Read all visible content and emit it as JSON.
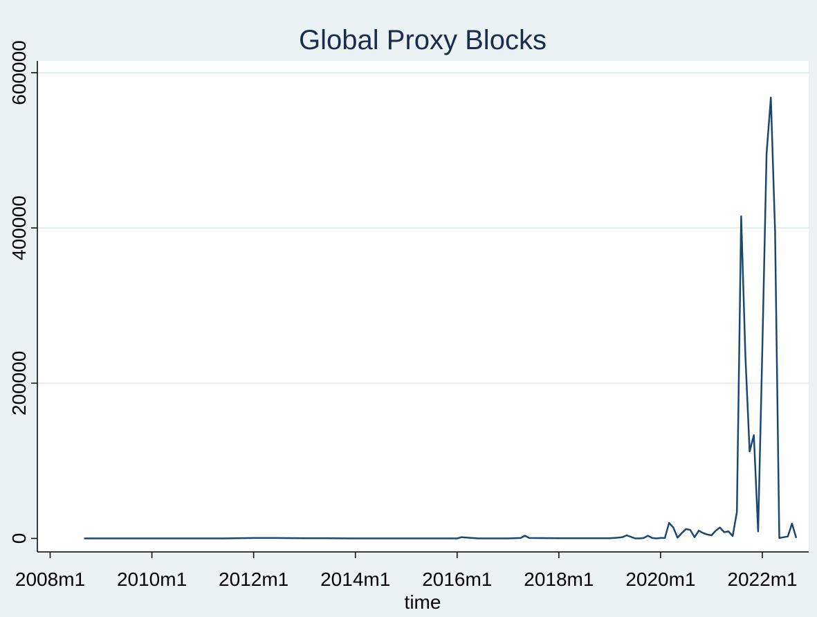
{
  "chart_data": {
    "type": "line",
    "title": "Global Proxy Blocks",
    "xlabel": "time",
    "ylabel": "",
    "xlim": [
      "2008-01",
      "2022-09"
    ],
    "ylim": [
      0,
      600000
    ],
    "x_ticks": [
      "2008-01",
      "2010-01",
      "2012-01",
      "2014-01",
      "2016-01",
      "2018-01",
      "2020-01",
      "2022-01"
    ],
    "x_tick_labels": [
      "2008m1",
      "2010m1",
      "2012m1",
      "2014m1",
      "2016m1",
      "2018m1",
      "2020m1",
      "2022m1"
    ],
    "y_ticks": [
      0,
      200000,
      400000,
      600000
    ],
    "y_tick_labels": [
      "0",
      "200000",
      "400000",
      "600000"
    ],
    "grid": "horizontal",
    "colors": {
      "line": "#1a476f",
      "background": "#eaf2f3",
      "plot_background": "#ffffff",
      "grid": "#e4eef0"
    },
    "series": [
      {
        "x": [
          "2008-09",
          "2009-01",
          "2009-06",
          "2010-01",
          "2010-06",
          "2011-01",
          "2011-06",
          "2012-01",
          "2012-06",
          "2013-01",
          "2013-06",
          "2014-01",
          "2014-06",
          "2015-01",
          "2015-06",
          "2016-01",
          "2016-02",
          "2016-06",
          "2017-01",
          "2017-04",
          "2017-05",
          "2017-06",
          "2018-01",
          "2018-06",
          "2019-01",
          "2019-03",
          "2019-04",
          "2019-05",
          "2019-07",
          "2019-08",
          "2019-09",
          "2019-10",
          "2019-11",
          "2019-12",
          "2020-01",
          "2020-02",
          "2020-03",
          "2020-04",
          "2020-05",
          "2020-06",
          "2020-07",
          "2020-08",
          "2020-09",
          "2020-10",
          "2020-11",
          "2020-12",
          "2021-01",
          "2021-02",
          "2021-03",
          "2021-04",
          "2021-05",
          "2021-06",
          "2021-07",
          "2021-08",
          "2021-09",
          "2021-10",
          "2021-11",
          "2021-12",
          "2022-01",
          "2022-02",
          "2022-03",
          "2022-04",
          "2022-05",
          "2022-06",
          "2022-07",
          "2022-08",
          "2022-09"
        ],
        "values": [
          0,
          0,
          0,
          0,
          0,
          0,
          0,
          500,
          500,
          200,
          200,
          0,
          0,
          0,
          0,
          0,
          1500,
          0,
          0,
          500,
          3500,
          500,
          300,
          300,
          300,
          1000,
          1500,
          4000,
          0,
          0,
          500,
          3500,
          500,
          0,
          500,
          500,
          20000,
          14000,
          1000,
          7000,
          12000,
          11000,
          1500,
          10000,
          7000,
          5000,
          4000,
          10000,
          14000,
          8000,
          9000,
          3000,
          34000,
          415000,
          235000,
          112000,
          133000,
          9000,
          245000,
          496000,
          568000,
          395000,
          500,
          1500,
          2500,
          19000,
          500
        ]
      }
    ]
  }
}
